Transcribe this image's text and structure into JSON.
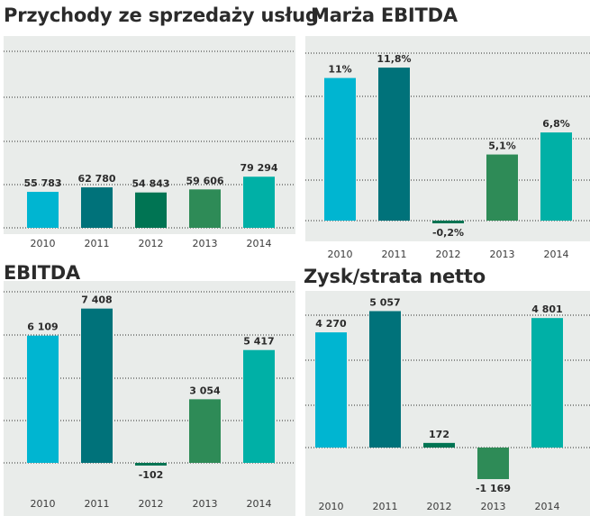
{
  "chart_data": [
    {
      "type": "bar",
      "title": "Przychody ze sprzedaży usług",
      "categories": [
        "2010",
        "2011",
        "2012",
        "2013",
        "2014"
      ],
      "values": [
        55783,
        62780,
        54843,
        59606,
        79294
      ],
      "value_labels": [
        "55 783",
        "62 780",
        "54 843",
        "59 606",
        "79 294"
      ],
      "ylim": [
        0,
        90000
      ],
      "grid": true,
      "colors": [
        "#00b5d1",
        "#00727a",
        "#007453",
        "#2e8b57",
        "#00b0a6"
      ]
    },
    {
      "type": "bar",
      "title": "Marża EBITDA",
      "categories": [
        "2010",
        "2011",
        "2012",
        "2013",
        "2014"
      ],
      "values": [
        11,
        11.8,
        -0.2,
        5.1,
        6.8
      ],
      "value_labels": [
        "11%",
        "11,8%",
        "-0,2%",
        "5,1%",
        "6,8%"
      ],
      "ylim": [
        -1,
        15
      ],
      "grid": true,
      "colors": [
        "#00b5d1",
        "#00727a",
        "#007453",
        "#2e8b57",
        "#00b0a6"
      ]
    },
    {
      "type": "bar",
      "title": "EBITDA",
      "categories": [
        "2010",
        "2011",
        "2012",
        "2013",
        "2014"
      ],
      "values": [
        6109,
        7408,
        -102,
        3054,
        5417
      ],
      "value_labels": [
        "6 109",
        "7 408",
        "-102",
        "3 054",
        "5 417"
      ],
      "ylim": [
        -500,
        8500
      ],
      "grid": true,
      "colors": [
        "#00b5d1",
        "#00727a",
        "#007453",
        "#2e8b57",
        "#00b0a6"
      ]
    },
    {
      "type": "bar",
      "title": "Zysk/strata netto",
      "categories": [
        "2010",
        "2011",
        "2012",
        "2013",
        "2014"
      ],
      "values": [
        4270,
        5057,
        172,
        -1169,
        4801
      ],
      "value_labels": [
        "4 270",
        "5 057",
        "172",
        "-1 169",
        "4 801"
      ],
      "ylim": [
        -1500,
        5800
      ],
      "grid": true,
      "colors": [
        "#00b5d1",
        "#00727a",
        "#007453",
        "#2e8b57",
        "#00b0a6"
      ]
    }
  ]
}
